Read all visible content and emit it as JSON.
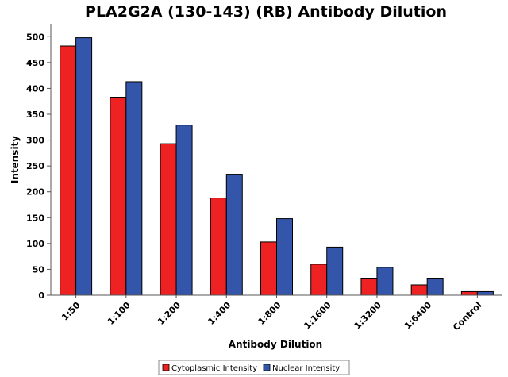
{
  "chart_data": {
    "type": "bar",
    "title": "PLA2G2A (130-143) (RB) Antibody Dilution",
    "xlabel": "Antibody Dilution",
    "ylabel": "Intensity",
    "ylim": [
      0,
      525
    ],
    "yticks": [
      0,
      50,
      100,
      150,
      200,
      250,
      300,
      350,
      400,
      450,
      500
    ],
    "grid": false,
    "legend_position": "bottom",
    "categories": [
      "1:50",
      "1:100",
      "1:200",
      "1:400",
      "1:800",
      "1:1600",
      "1:3200",
      "1:6400",
      "Control"
    ],
    "series": [
      {
        "name": "Cytoplasmic Intensity",
        "color": "#ee2222",
        "values": [
          482,
          383,
          293,
          188,
          103,
          60,
          33,
          20,
          7
        ]
      },
      {
        "name": "Nuclear Intensity",
        "color": "#3355aa",
        "values": [
          498,
          413,
          329,
          234,
          148,
          93,
          54,
          33,
          7
        ]
      }
    ]
  }
}
